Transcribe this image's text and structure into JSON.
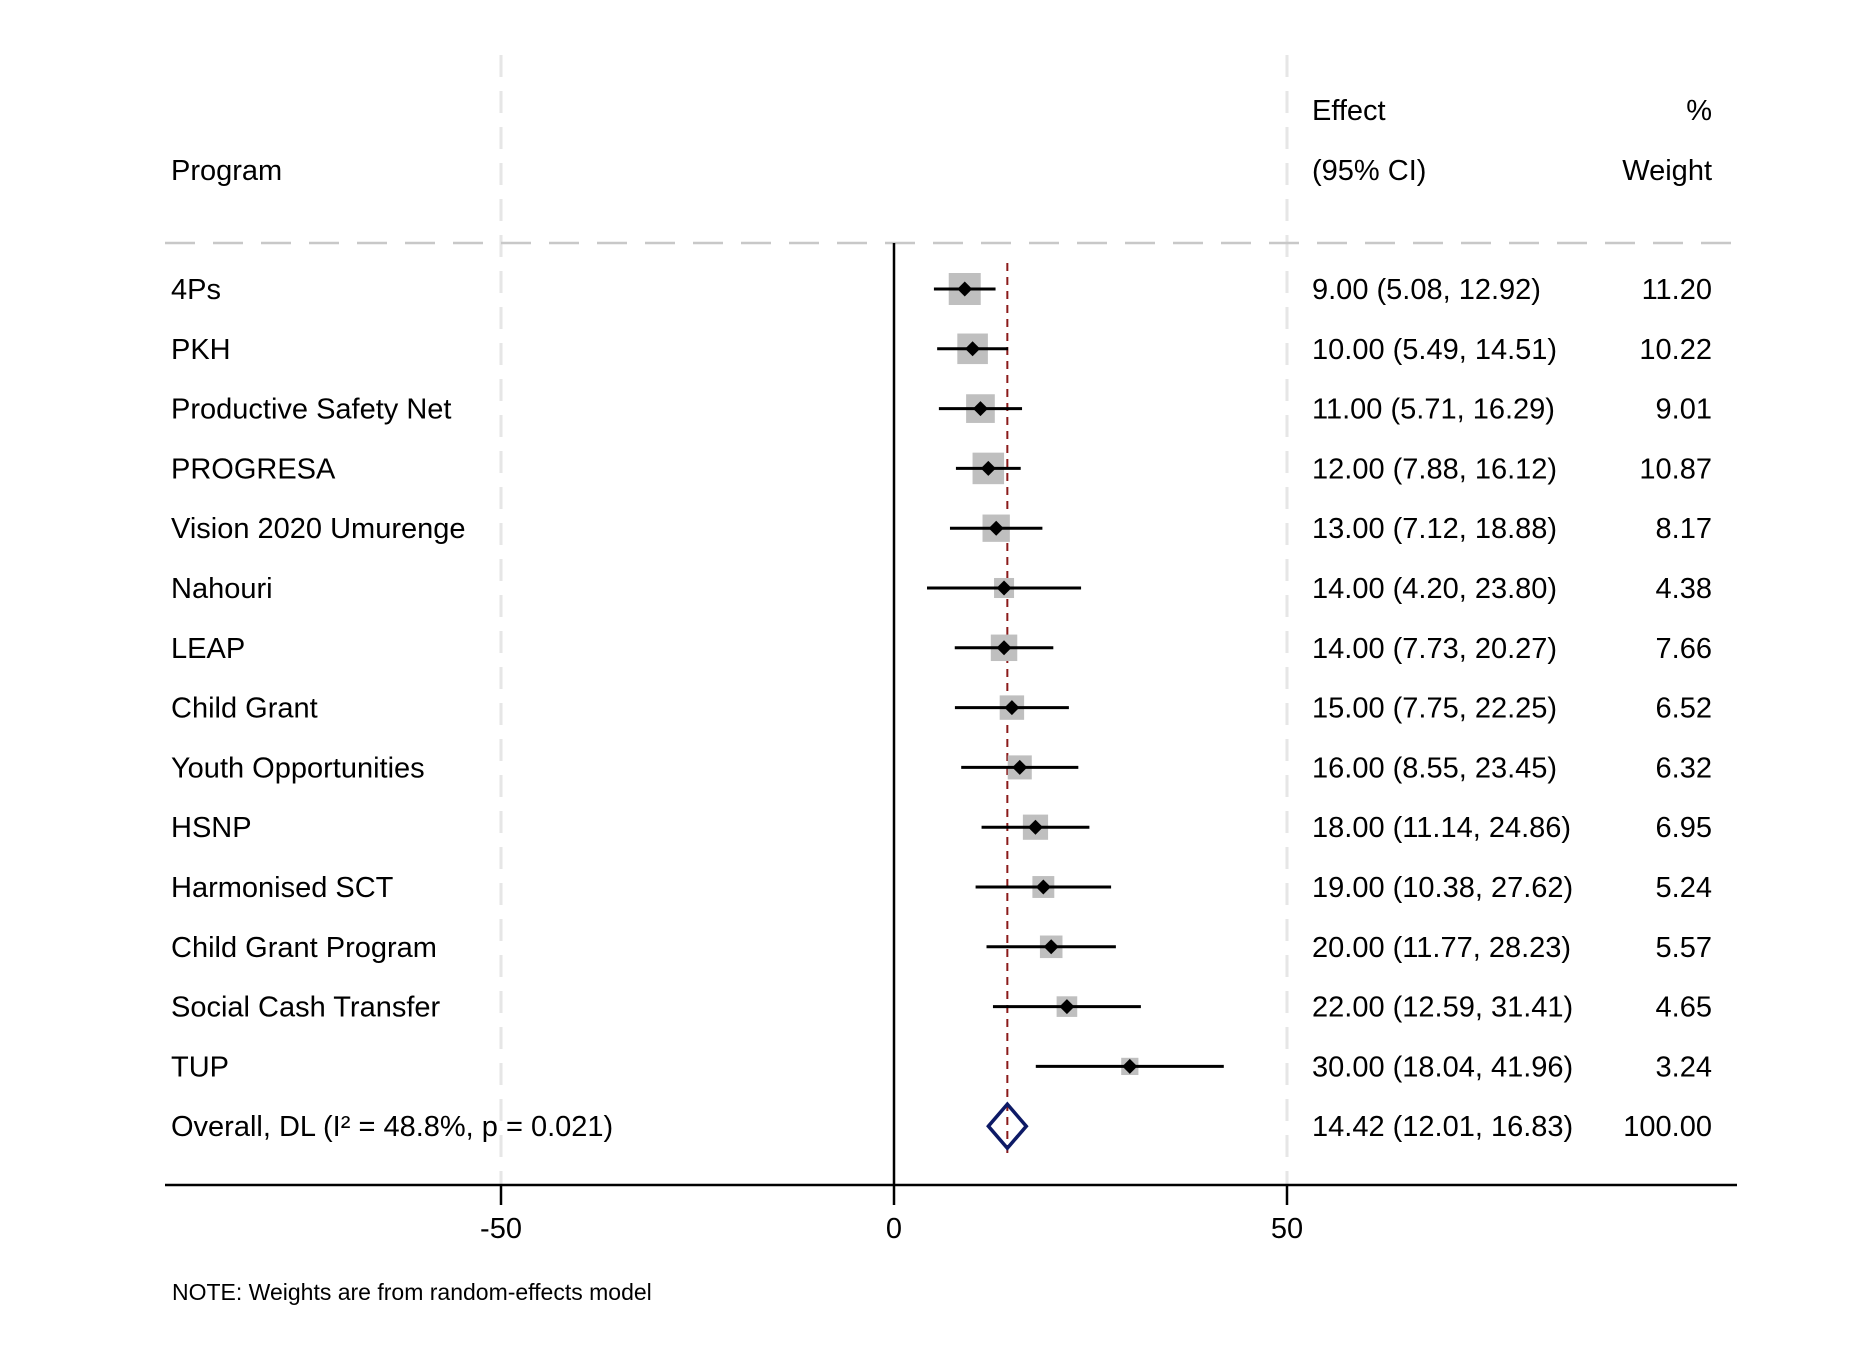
{
  "chart_data": {
    "type": "forest",
    "header": {
      "program": "Program",
      "effect_line1": "Effect",
      "effect_line2": "(95% CI)",
      "weight_line1": "%",
      "weight_line2": "Weight"
    },
    "xlim": [
      -90,
      110
    ],
    "xticks": [
      -50,
      0,
      50
    ],
    "xtick_labels": [
      "-50",
      "0",
      "50"
    ],
    "studies": [
      {
        "label": "4Ps",
        "effect": 9.0,
        "lo": 5.08,
        "hi": 12.92,
        "weight": 11.2,
        "ci_text": "9.00 (5.08, 12.92)",
        "weight_text": "11.20"
      },
      {
        "label": "PKH",
        "effect": 10.0,
        "lo": 5.49,
        "hi": 14.51,
        "weight": 10.22,
        "ci_text": "10.00 (5.49, 14.51)",
        "weight_text": "10.22"
      },
      {
        "label": "Productive Safety Net",
        "effect": 11.0,
        "lo": 5.71,
        "hi": 16.29,
        "weight": 9.01,
        "ci_text": "11.00 (5.71, 16.29)",
        "weight_text": "9.01"
      },
      {
        "label": "PROGRESA",
        "effect": 12.0,
        "lo": 7.88,
        "hi": 16.12,
        "weight": 10.87,
        "ci_text": "12.00 (7.88, 16.12)",
        "weight_text": "10.87"
      },
      {
        "label": "Vision 2020 Umurenge",
        "effect": 13.0,
        "lo": 7.12,
        "hi": 18.88,
        "weight": 8.17,
        "ci_text": "13.00 (7.12, 18.88)",
        "weight_text": "8.17"
      },
      {
        "label": "Nahouri",
        "effect": 14.0,
        "lo": 4.2,
        "hi": 23.8,
        "weight": 4.38,
        "ci_text": "14.00 (4.20, 23.80)",
        "weight_text": "4.38"
      },
      {
        "label": "LEAP",
        "effect": 14.0,
        "lo": 7.73,
        "hi": 20.27,
        "weight": 7.66,
        "ci_text": "14.00 (7.73, 20.27)",
        "weight_text": "7.66"
      },
      {
        "label": "Child Grant",
        "effect": 15.0,
        "lo": 7.75,
        "hi": 22.25,
        "weight": 6.52,
        "ci_text": "15.00 (7.75, 22.25)",
        "weight_text": "6.52"
      },
      {
        "label": "Youth Opportunities",
        "effect": 16.0,
        "lo": 8.55,
        "hi": 23.45,
        "weight": 6.32,
        "ci_text": "16.00 (8.55, 23.45)",
        "weight_text": "6.32"
      },
      {
        "label": "HSNP",
        "effect": 18.0,
        "lo": 11.14,
        "hi": 24.86,
        "weight": 6.95,
        "ci_text": "18.00 (11.14, 24.86)",
        "weight_text": "6.95"
      },
      {
        "label": "Harmonised SCT",
        "effect": 19.0,
        "lo": 10.38,
        "hi": 27.62,
        "weight": 5.24,
        "ci_text": "19.00 (10.38, 27.62)",
        "weight_text": "5.24"
      },
      {
        "label": "Child Grant Program",
        "effect": 20.0,
        "lo": 11.77,
        "hi": 28.23,
        "weight": 5.57,
        "ci_text": "20.00 (11.77, 28.23)",
        "weight_text": "5.57"
      },
      {
        "label": "Social Cash Transfer",
        "effect": 22.0,
        "lo": 12.59,
        "hi": 31.41,
        "weight": 4.65,
        "ci_text": "22.00 (12.59, 31.41)",
        "weight_text": "4.65"
      },
      {
        "label": "TUP",
        "effect": 30.0,
        "lo": 18.04,
        "hi": 41.96,
        "weight": 3.24,
        "ci_text": "30.00 (18.04, 41.96)",
        "weight_text": "3.24"
      }
    ],
    "overall": {
      "label": "Overall, DL (I² = 48.8%, p = 0.021)",
      "effect": 14.42,
      "lo": 12.01,
      "hi": 16.83,
      "weight": 100.0,
      "ci_text": "14.42 (12.01, 16.83)",
      "weight_text": "100.00"
    },
    "note": "NOTE: Weights are from random-effects model",
    "colors": {
      "ci_line": "#000000",
      "point": "#000000",
      "weight_box": "#bfbfbf",
      "overall_line": "#8b1a1a",
      "diamond": "#0d1a66",
      "grid": "#e6e6e6"
    }
  }
}
